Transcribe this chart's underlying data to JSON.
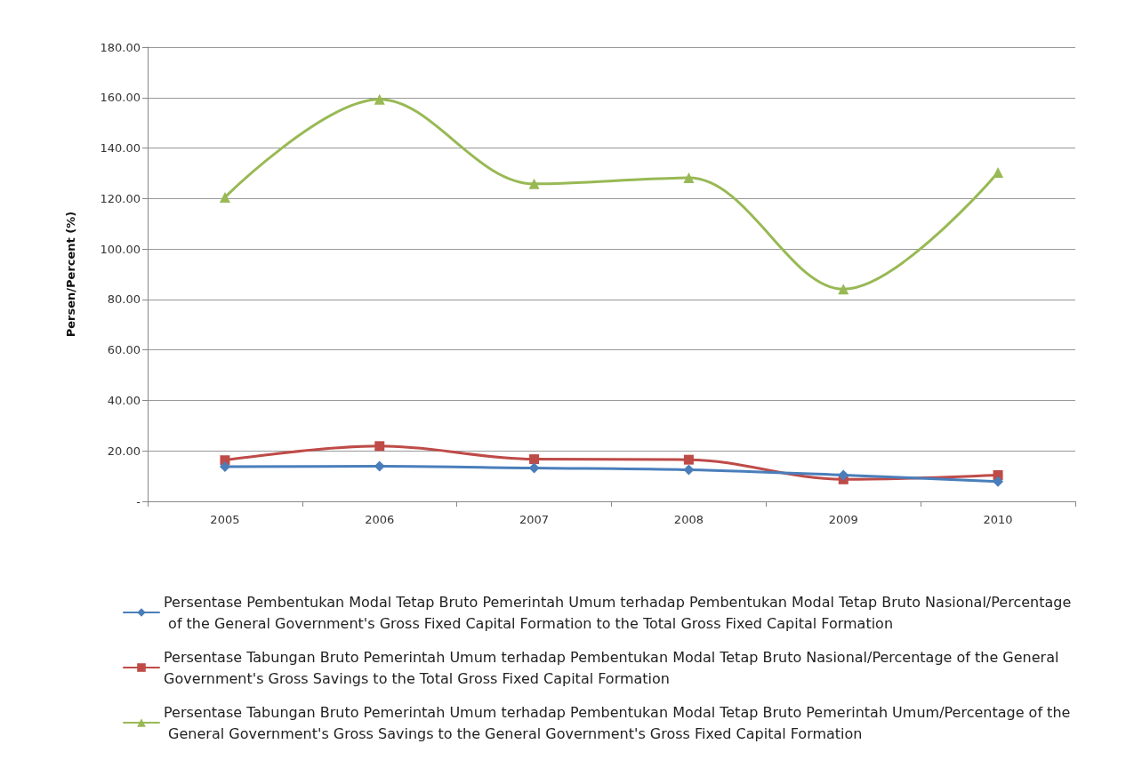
{
  "chart_data": {
    "type": "line",
    "ylabel": "Persen/Percent (%)",
    "categories": [
      "2005",
      "2006",
      "2007",
      "2008",
      "2009",
      "2010"
    ],
    "series": [
      {
        "name": "Persentase Pembentukan Modal Tetap Bruto Pemerintah Umum terhadap Pembentukan Modal Tetap Bruto Nasional/Percentage of the General Government's Gross Fixed Capital Formation to the Total Gross Fixed Capital Formation",
        "color": "#4a7ebb",
        "marker": "diamond",
        "values": [
          13.7,
          13.9,
          13.2,
          12.5,
          10.4,
          7.8
        ]
      },
      {
        "name": "Persentase Tabungan Bruto Pemerintah Umum terhadap Pembentukan Modal Tetap Bruto Nasional/Percentage of the General Government's Gross Savings to the Total Gross Fixed Capital Formation",
        "color": "#be4b48",
        "marker": "square",
        "values": [
          16.3,
          21.9,
          16.7,
          16.5,
          8.7,
          10.4
        ]
      },
      {
        "name": "Persentase Tabungan Bruto Pemerintah Umum terhadap Pembentukan Modal Tetap Bruto Pemerintah Umum/Percentage of the General Government's Gross Savings to the General Government's Gross Fixed Capital Formation",
        "color": "#98b954",
        "marker": "triangle",
        "values": [
          120.5,
          159.3,
          125.8,
          128.2,
          84.1,
          130.3
        ]
      }
    ],
    "ylim": [
      0,
      180
    ],
    "yticks": [
      {
        "value": 0,
        "label": "-"
      },
      {
        "value": 20,
        "label": "20.00"
      },
      {
        "value": 40,
        "label": "40.00"
      },
      {
        "value": 60,
        "label": "60.00"
      },
      {
        "value": 80,
        "label": "80.00"
      },
      {
        "value": 100,
        "label": "100.00"
      },
      {
        "value": 120,
        "label": "120.00"
      },
      {
        "value": 140,
        "label": "140.00"
      },
      {
        "value": 160,
        "label": "160.00"
      },
      {
        "value": 180,
        "label": "180.00"
      }
    ],
    "grid": "y",
    "legend": "bottom",
    "line_style": "solid"
  }
}
